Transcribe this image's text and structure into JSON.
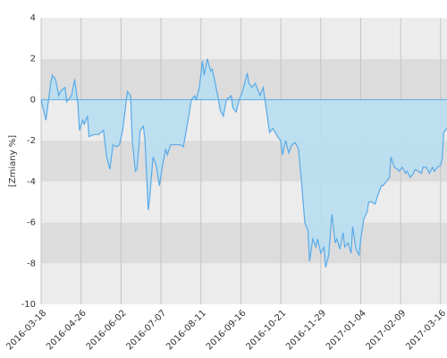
{
  "chart_data": {
    "type": "area",
    "y_label": "[Zmiany %]",
    "xlim": [
      0,
      254
    ],
    "xticks": [
      {
        "value": 0,
        "label": "2016-03-18"
      },
      {
        "value": 25,
        "label": "2016-04-26"
      },
      {
        "value": 50,
        "label": "2016-06-02"
      },
      {
        "value": 75,
        "label": "2016-07-07"
      },
      {
        "value": 100,
        "label": "2016-08-11"
      },
      {
        "value": 125,
        "label": "2016-09-16"
      },
      {
        "value": 150,
        "label": "2016-10-21"
      },
      {
        "value": 175,
        "label": "2016-11-29"
      },
      {
        "value": 200,
        "label": "2017-01-04"
      },
      {
        "value": 225,
        "label": "2017-02-09"
      },
      {
        "value": 250,
        "label": "2017-03-16"
      }
    ],
    "ylim": [
      -10,
      4
    ],
    "yticks": [
      -10,
      -8,
      -6,
      -4,
      -2,
      0,
      2,
      4
    ],
    "grid": true,
    "color": "#5aaae8",
    "fill": "#b8def0",
    "x": [
      0,
      3,
      6,
      7,
      9,
      11,
      12,
      15,
      16,
      19,
      21,
      23,
      24,
      26,
      27,
      29,
      30,
      33,
      36,
      39,
      41,
      43,
      45,
      47,
      49,
      51,
      54,
      56,
      57,
      59,
      60,
      62,
      64,
      65,
      67,
      68,
      70,
      72,
      74,
      76,
      78,
      79,
      81,
      83,
      86,
      87,
      89,
      92,
      94,
      96,
      97,
      99,
      101,
      102,
      104,
      106,
      107,
      109,
      111,
      112,
      114,
      116,
      119,
      120,
      122,
      124,
      126,
      129,
      130,
      132,
      134,
      137,
      139,
      141,
      143,
      145,
      148,
      150,
      151,
      153,
      155,
      157,
      159,
      161,
      163,
      165,
      167,
      168,
      170,
      172,
      173,
      175,
      177,
      178,
      180,
      182,
      184,
      185,
      187,
      189,
      190,
      192,
      194,
      195,
      197,
      199,
      200,
      202,
      204,
      205,
      207,
      209,
      211,
      213,
      214,
      216,
      218,
      219,
      221,
      223,
      224,
      226,
      228,
      229,
      231,
      233,
      234,
      236,
      238,
      239,
      241,
      243,
      245,
      246,
      248,
      250,
      251,
      252,
      254
    ],
    "values": [
      0,
      -1.0,
      0.8,
      1.2,
      1.0,
      0.2,
      0.4,
      0.6,
      -0.1,
      0.2,
      1.0,
      -0.2,
      -1.5,
      -1.0,
      -1.2,
      -0.8,
      -1.8,
      -1.7,
      -1.7,
      -1.5,
      -2.8,
      -3.4,
      -2.2,
      -2.3,
      -2.2,
      -1.5,
      0.4,
      0.2,
      -2.0,
      -3.5,
      -3.4,
      -1.5,
      -1.3,
      -2.0,
      -5.4,
      -4.8,
      -2.8,
      -3.2,
      -4.2,
      -3.2,
      -2.4,
      -2.7,
      -2.2,
      -2.2,
      -2.2,
      -2.2,
      -2.3,
      -1.0,
      0.0,
      0.2,
      0.0,
      0.6,
      1.9,
      1.2,
      2.0,
      1.4,
      1.5,
      0.8,
      0.0,
      -0.5,
      -0.8,
      0.0,
      0.2,
      -0.4,
      -0.6,
      0.0,
      0.4,
      1.3,
      0.8,
      0.6,
      0.8,
      0.2,
      0.6,
      -0.5,
      -1.6,
      -1.4,
      -1.8,
      -2.0,
      -2.7,
      -2.0,
      -2.6,
      -2.2,
      -2.1,
      -2.4,
      -4.0,
      -6.0,
      -6.4,
      -7.9,
      -6.8,
      -7.2,
      -6.8,
      -7.5,
      -7.2,
      -8.2,
      -7.6,
      -5.6,
      -7.0,
      -6.8,
      -7.3,
      -6.5,
      -7.2,
      -7.0,
      -7.5,
      -6.2,
      -7.3,
      -7.6,
      -6.8,
      -5.8,
      -5.5,
      -5.0,
      -5.0,
      -5.1,
      -4.6,
      -4.2,
      -4.2,
      -4.0,
      -3.8,
      -2.8,
      -3.3,
      -3.4,
      -3.5,
      -3.3,
      -3.6,
      -3.5,
      -3.8,
      -3.6,
      -3.4,
      -3.5,
      -3.6,
      -3.3,
      -3.3,
      -3.6,
      -3.3,
      -3.5,
      -3.3,
      -3.2,
      -2.9,
      -1.6,
      -1.4
    ]
  }
}
